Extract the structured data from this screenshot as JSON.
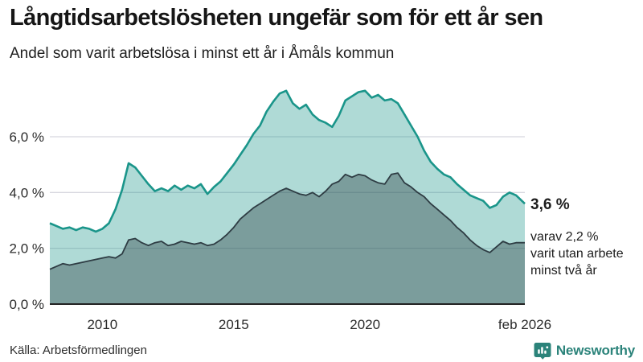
{
  "header": {
    "title": "Långtidsarbetslösheten ungefär som för ett år sen",
    "subtitle": "Andel som varit arbetslösa i minst ett år i Åmåls kommun"
  },
  "chart_data": {
    "type": "area",
    "title": "Långtidsarbetslösheten ungefär som för ett år sen",
    "subtitle": "Andel som varit arbetslösa i minst ett år i Åmåls kommun",
    "unit": "%",
    "grid": true,
    "legend_position": "none",
    "xlim": [
      2008,
      2026.083
    ],
    "ylim": [
      0,
      8.4
    ],
    "x_ticks": [
      {
        "label": "2010",
        "year": 2010
      },
      {
        "label": "2015",
        "year": 2015
      },
      {
        "label": "2020",
        "year": 2020
      },
      {
        "label": "feb 2026",
        "year": 2026.083
      }
    ],
    "y_ticks": [
      {
        "label": "0,0 %",
        "value": 0
      },
      {
        "label": "2,0 %",
        "value": 2
      },
      {
        "label": "4,0 %",
        "value": 4
      },
      {
        "label": "6,0 %",
        "value": 6
      }
    ],
    "x": [
      2008,
      2008.25,
      2008.5,
      2008.75,
      2009,
      2009.25,
      2009.5,
      2009.75,
      2010,
      2010.25,
      2010.5,
      2010.75,
      2011,
      2011.25,
      2011.5,
      2011.75,
      2012,
      2012.25,
      2012.5,
      2012.75,
      2013,
      2013.25,
      2013.5,
      2013.75,
      2014,
      2014.25,
      2014.5,
      2014.75,
      2015,
      2015.25,
      2015.5,
      2015.75,
      2016,
      2016.25,
      2016.5,
      2016.75,
      2017,
      2017.25,
      2017.5,
      2017.75,
      2018,
      2018.25,
      2018.5,
      2018.75,
      2019,
      2019.25,
      2019.5,
      2019.75,
      2020,
      2020.25,
      2020.5,
      2020.75,
      2021,
      2021.25,
      2021.5,
      2021.75,
      2022,
      2022.25,
      2022.5,
      2022.75,
      2023,
      2023.25,
      2023.5,
      2023.75,
      2024,
      2024.25,
      2024.5,
      2024.75,
      2025,
      2025.25,
      2025.5,
      2025.75,
      2026.083
    ],
    "series": [
      {
        "name": "Arbetslösa minst ett år",
        "line_color": "#1a958a",
        "fill_color": "rgba(26,149,138,0.35)",
        "line_width": 2.6,
        "values": [
          2.9,
          2.8,
          2.7,
          2.75,
          2.65,
          2.75,
          2.7,
          2.6,
          2.7,
          2.9,
          3.4,
          4.1,
          5.05,
          4.9,
          4.6,
          4.3,
          4.05,
          4.15,
          4.05,
          4.25,
          4.1,
          4.25,
          4.15,
          4.3,
          3.95,
          4.2,
          4.4,
          4.7,
          5.0,
          5.35,
          5.7,
          6.1,
          6.4,
          6.9,
          7.25,
          7.55,
          7.65,
          7.2,
          7.0,
          7.15,
          6.8,
          6.6,
          6.5,
          6.35,
          6.75,
          7.3,
          7.45,
          7.6,
          7.65,
          7.4,
          7.5,
          7.3,
          7.35,
          7.2,
          6.8,
          6.4,
          6.0,
          5.5,
          5.1,
          4.85,
          4.65,
          4.55,
          4.3,
          4.1,
          3.9,
          3.8,
          3.7,
          3.45,
          3.55,
          3.85,
          4.0,
          3.9,
          3.6
        ]
      },
      {
        "name": "Arbetslösa minst två år",
        "line_color": "#2e3c43",
        "fill_color": "rgba(40,58,64,0.38)",
        "line_width": 1.8,
        "values": [
          1.25,
          1.35,
          1.45,
          1.4,
          1.45,
          1.5,
          1.55,
          1.6,
          1.65,
          1.7,
          1.65,
          1.8,
          2.3,
          2.35,
          2.2,
          2.1,
          2.2,
          2.25,
          2.1,
          2.15,
          2.25,
          2.2,
          2.15,
          2.2,
          2.1,
          2.15,
          2.3,
          2.5,
          2.75,
          3.05,
          3.25,
          3.45,
          3.6,
          3.75,
          3.9,
          4.05,
          4.15,
          4.05,
          3.95,
          3.9,
          4.0,
          3.85,
          4.05,
          4.3,
          4.4,
          4.65,
          4.55,
          4.65,
          4.6,
          4.45,
          4.35,
          4.3,
          4.65,
          4.7,
          4.35,
          4.2,
          4.0,
          3.85,
          3.6,
          3.4,
          3.2,
          3.0,
          2.75,
          2.55,
          2.3,
          2.1,
          1.95,
          1.85,
          2.05,
          2.25,
          2.15,
          2.2,
          2.2
        ]
      }
    ],
    "annotations": {
      "latest_value": "3,6 %",
      "sub_line1": "varav 2,2 %",
      "sub_line2": "varit utan arbete",
      "sub_line3": "minst två år"
    },
    "colors": {
      "grid": "#d7d7df",
      "baseline": "#222222",
      "tick_label": "#2b2b2b",
      "annotation": "#1d1d1d"
    }
  },
  "footer": {
    "source": "Källa: Arbetsförmedlingen",
    "brand": "Newsworthy",
    "brand_color": "#2b837a"
  }
}
